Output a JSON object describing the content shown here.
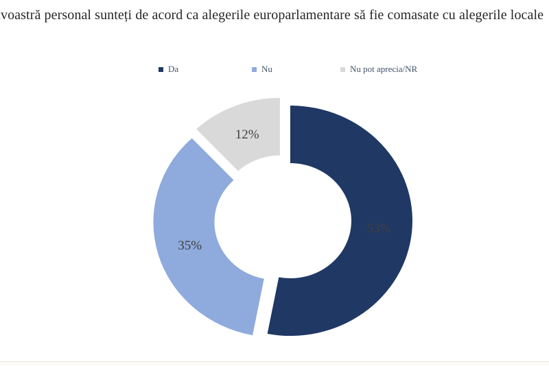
{
  "chart_data": {
    "type": "pie",
    "subtype": "doughnut",
    "title": "avoastră personal sunteți de acord ca alegerile europarlamentare să fie comasate cu alegerile locale",
    "categories": [
      "Da",
      "Nu",
      "Nu pot aprecia/NR"
    ],
    "values": [
      53,
      35,
      12
    ],
    "start_angle_deg": 0,
    "direction": "clockwise",
    "hole_ratio": 0.5,
    "exploded": true,
    "legend_position": "top",
    "legend": [
      {
        "key": "da",
        "label": "Da",
        "color": "#203864"
      },
      {
        "key": "nu",
        "label": "Nu",
        "color": "#8FAADC"
      },
      {
        "key": "nr",
        "label": "Nu pot aprecia/NR",
        "color": "#D9D9D9"
      }
    ],
    "slices": [
      {
        "key": "da",
        "name": "Da",
        "value": 53,
        "data_label": "53%",
        "color": "#203864"
      },
      {
        "key": "nu",
        "name": "Nu",
        "value": 35,
        "data_label": "35%",
        "color": "#8FAADC"
      },
      {
        "key": "nr",
        "name": "Nu pot aprecia/NR",
        "value": 12,
        "data_label": "12%",
        "color": "#D9D9D9"
      }
    ],
    "data_label_color": "#404040",
    "title_color": "#262626",
    "legend_text_color": "#44546A"
  }
}
